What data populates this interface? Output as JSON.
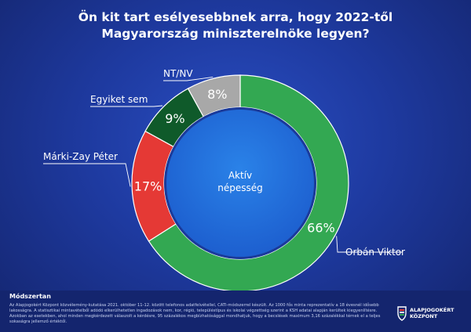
{
  "title_line1": "Ön kit tart esélyesebbnek arra, hogy 2022-től",
  "title_line2": "Magyarország miniszterelnöke legyen?",
  "center_label_line1": "Aktív",
  "center_label_line2": "népesség",
  "chart_data": {
    "type": "pie",
    "variant": "donut",
    "slices": [
      {
        "label": "Orbán Viktor",
        "value": 66,
        "display": "66%",
        "color": "#33a852"
      },
      {
        "label": "Márki-Zay Péter",
        "value": 17,
        "display": "17%",
        "color": "#e53935"
      },
      {
        "label": "Egyiket sem",
        "value": 9,
        "display": "9%",
        "color": "#0f5a2a"
      },
      {
        "label": "NT/NV",
        "value": 8,
        "display": "8%",
        "color": "#a8a8a8"
      }
    ]
  },
  "method": {
    "title": "Módszertan",
    "text": "Az Alapjogokért Központ közvélemény-kutatása 2021. október 11-12. között telefonos adatfelvétellel, CATI-módszerrel készült. Az 1000 fős minta reprezentatív a 18 évesnél idősebb lakosságra. A statisztikai mintavételből adódó elkerülhetetlen ingadozások nem, kor, régió, településtípus és iskolai végzettség szerint a KSH adatai alapján kerültek kiegyenlítésre. Azokban az esetekben, ahol minden megkérdezett válaszolt a kérdésre, 95 százalékos megbízhatósággal mondhatjuk, hogy a becslések maximum 3,16 százalékkal térnek el a teljes sokaságra jellemző értéktől."
  },
  "logo": {
    "line1": "ALAPJOGOKÉRT",
    "line2": "KÖZPONT"
  }
}
